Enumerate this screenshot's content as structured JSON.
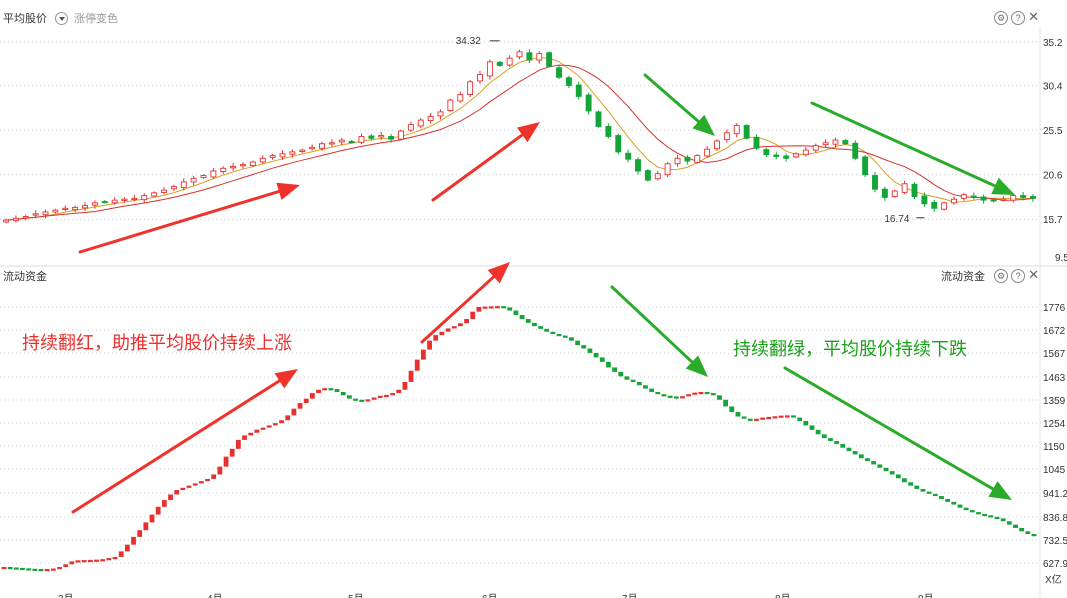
{
  "top_panel": {
    "title": "平均股价",
    "sub_indicator": "涨停变色"
  },
  "bottom_panel": {
    "title": "流动资金",
    "right_title": "流动资金",
    "unit": "X亿"
  },
  "annotations": {
    "red_text": "持续翻红，助推平均股价持续上涨",
    "green_text": "持续翻绿，平均股价持续下跌"
  },
  "colors": {
    "up": "#e8312f",
    "down": "#13a538",
    "ma_red": "#d8322e",
    "ma_orange": "#d9a020",
    "arrow_red": "#f0322c",
    "arrow_green": "#2aab2a"
  },
  "chart_data": [
    {
      "type": "candlestick",
      "title": "平均股价",
      "y_ticks": [
        "35.2",
        "30.4",
        "25.5",
        "20.6",
        "15.7"
      ],
      "ylim": [
        11.0,
        36.5
      ],
      "x_ticks": [
        "3月",
        "4月",
        "5月",
        "6月",
        "7月",
        "8月",
        "9月"
      ],
      "annotations": [
        {
          "label": "34.32",
          "x_index": 50,
          "value": 34.32
        },
        {
          "label": "16.74",
          "x_index": 93,
          "value": 16.74
        }
      ],
      "current_label": "9.5",
      "close_series": [
        15.6,
        15.8,
        16.0,
        16.3,
        16.5,
        16.7,
        16.9,
        17.0,
        17.2,
        17.5,
        17.6,
        17.8,
        17.9,
        18.0,
        18.3,
        18.6,
        18.9,
        19.3,
        19.8,
        20.2,
        20.5,
        21.0,
        21.3,
        21.5,
        21.7,
        22.0,
        22.4,
        22.7,
        22.9,
        23.1,
        23.3,
        23.6,
        24.0,
        24.1,
        24.4,
        24.2,
        24.8,
        24.6,
        24.9,
        24.5,
        25.4,
        26.1,
        26.6,
        27.0,
        27.5,
        28.8,
        29.4,
        30.8,
        31.6,
        33.0,
        32.6,
        33.4,
        34.1,
        33.2,
        33.9,
        32.5,
        31.3,
        30.4,
        29.2,
        27.6,
        25.9,
        24.8,
        23.1,
        22.3,
        21.0,
        20.0,
        20.7,
        21.8,
        22.4,
        22.1,
        22.7,
        23.4,
        24.3,
        25.2,
        26.0,
        24.6,
        23.5,
        22.8,
        22.6,
        22.4,
        22.9,
        23.3,
        23.8,
        24.1,
        24.4,
        24.0,
        22.4,
        20.6,
        19.0,
        18.1,
        18.8,
        19.6,
        18.2,
        17.4,
        16.9,
        17.5,
        17.9,
        18.4,
        18.2,
        17.8,
        17.7,
        17.9,
        18.3,
        18.1,
        18.0
      ]
    },
    {
      "type": "line",
      "title": "流动资金",
      "y_ticks": [
        "1776",
        "1672",
        "1567",
        "1463",
        "1359",
        "1254",
        "1150",
        "1045",
        "941.2",
        "836.8",
        "732.5",
        "627.9"
      ],
      "ylim": [
        570,
        1830
      ],
      "unit": "X亿",
      "values": [
        610,
        608,
        606,
        604,
        602,
        601,
        600,
        601,
        603,
        610,
        622,
        635,
        640,
        641,
        642,
        643,
        645,
        650,
        655,
        680,
        710,
        745,
        775,
        810,
        845,
        880,
        910,
        935,
        955,
        965,
        975,
        985,
        995,
        1005,
        1025,
        1060,
        1105,
        1140,
        1180,
        1200,
        1212,
        1226,
        1235,
        1245,
        1255,
        1268,
        1290,
        1320,
        1345,
        1365,
        1390,
        1405,
        1412,
        1408,
        1395,
        1380,
        1365,
        1360,
        1358,
        1362,
        1370,
        1378,
        1382,
        1390,
        1405,
        1440,
        1490,
        1540,
        1585,
        1625,
        1650,
        1665,
        1680,
        1690,
        1703,
        1722,
        1755,
        1776,
        1778,
        1779,
        1780,
        1774,
        1760,
        1740,
        1722,
        1705,
        1690,
        1678,
        1665,
        1655,
        1648,
        1640,
        1625,
        1605,
        1590,
        1570,
        1550,
        1530,
        1505,
        1485,
        1465,
        1450,
        1440,
        1425,
        1410,
        1395,
        1385,
        1378,
        1375,
        1373,
        1376,
        1385,
        1392,
        1395,
        1390,
        1380,
        1360,
        1330,
        1305,
        1285,
        1275,
        1272,
        1275,
        1280,
        1283,
        1286,
        1289,
        1290,
        1280,
        1265,
        1245,
        1225,
        1205,
        1188,
        1175,
        1162,
        1145,
        1130,
        1115,
        1098,
        1085,
        1070,
        1055,
        1040,
        1025,
        1008,
        990,
        975,
        960,
        948,
        938,
        928,
        915,
        902,
        890,
        876,
        865,
        856,
        848,
        842,
        835,
        828,
        815,
        800,
        785,
        770,
        758,
        748
      ]
    }
  ]
}
